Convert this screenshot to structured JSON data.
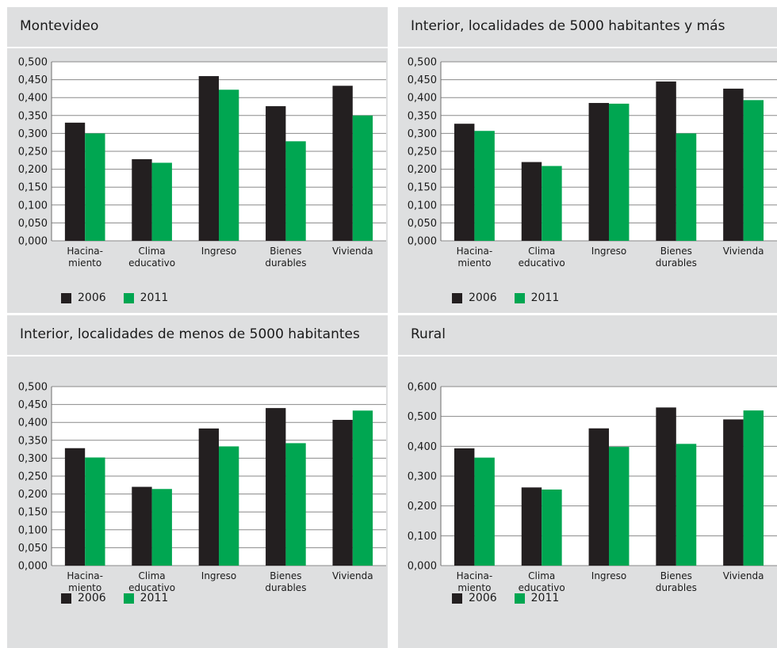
{
  "colors": {
    "series_2006": "#231f20",
    "series_2011": "#00a651",
    "panel_bg": "#dedfe0",
    "chart_bg": "#ffffff"
  },
  "chart_data": [
    {
      "type": "bar",
      "title": "Montevideo",
      "categories": [
        [
          "Hacina-",
          "miento"
        ],
        [
          "Clima",
          "educativo"
        ],
        [
          "Ingreso"
        ],
        [
          "Bienes",
          "durables"
        ],
        [
          "Vivienda"
        ]
      ],
      "yticks": [
        "0,000",
        "0,050",
        "0,100",
        "0,150",
        "0,200",
        "0,250",
        "0,300",
        "0,350",
        "0,400",
        "0,450",
        "0,500"
      ],
      "ylim": [
        0,
        0.5
      ],
      "grid": true,
      "legend": "bottom-left",
      "series": [
        {
          "name": "2006",
          "values": [
            0.33,
            0.228,
            0.46,
            0.376,
            0.433
          ]
        },
        {
          "name": "2011",
          "values": [
            0.3,
            0.218,
            0.422,
            0.278,
            0.35
          ]
        }
      ]
    },
    {
      "type": "bar",
      "title": "Interior, localidades de 5000 habitantes y más",
      "categories": [
        [
          "Hacina-",
          "miento"
        ],
        [
          "Clima",
          "educativo"
        ],
        [
          "Ingreso"
        ],
        [
          "Bienes",
          "durables"
        ],
        [
          "Vivienda"
        ]
      ],
      "yticks": [
        "0,000",
        "0,050",
        "0,100",
        "0,150",
        "0,200",
        "0,250",
        "0,300",
        "0,350",
        "0,400",
        "0,450",
        "0,500"
      ],
      "ylim": [
        0,
        0.5
      ],
      "grid": true,
      "legend": "bottom-left",
      "series": [
        {
          "name": "2006",
          "values": [
            0.327,
            0.22,
            0.385,
            0.445,
            0.425
          ]
        },
        {
          "name": "2011",
          "values": [
            0.307,
            0.209,
            0.383,
            0.3,
            0.393
          ]
        }
      ]
    },
    {
      "type": "bar",
      "title": "Interior, localidades de menos de 5000 habitantes",
      "categories": [
        [
          "Hacina-",
          "miento"
        ],
        [
          "Clima",
          "educativo"
        ],
        [
          "Ingreso"
        ],
        [
          "Bienes",
          "durables"
        ],
        [
          "Vivienda"
        ]
      ],
      "yticks": [
        "0,000",
        "0,050",
        "0,100",
        "0,150",
        "0,200",
        "0,250",
        "0,300",
        "0,350",
        "0,400",
        "0,450",
        "0,500"
      ],
      "ylim": [
        0,
        0.5
      ],
      "grid": true,
      "legend": "bottom-left",
      "series": [
        {
          "name": "2006",
          "values": [
            0.328,
            0.22,
            0.383,
            0.44,
            0.407
          ]
        },
        {
          "name": "2011",
          "values": [
            0.302,
            0.214,
            0.333,
            0.342,
            0.433
          ]
        }
      ]
    },
    {
      "type": "bar",
      "title": "Rural",
      "categories": [
        [
          "Hacina-",
          "miento"
        ],
        [
          "Clima",
          "educativo"
        ],
        [
          "Ingreso"
        ],
        [
          "Bienes",
          "durables"
        ],
        [
          "Vivienda"
        ]
      ],
      "yticks": [
        "0,000",
        "0,100",
        "0,200",
        "0,300",
        "0,400",
        "0,500",
        "0,600"
      ],
      "ylim": [
        0,
        0.6
      ],
      "grid": true,
      "legend": "bottom-left",
      "series": [
        {
          "name": "2006",
          "values": [
            0.393,
            0.262,
            0.46,
            0.53,
            0.49
          ]
        },
        {
          "name": "2011",
          "values": [
            0.362,
            0.255,
            0.398,
            0.408,
            0.52
          ]
        }
      ]
    }
  ]
}
